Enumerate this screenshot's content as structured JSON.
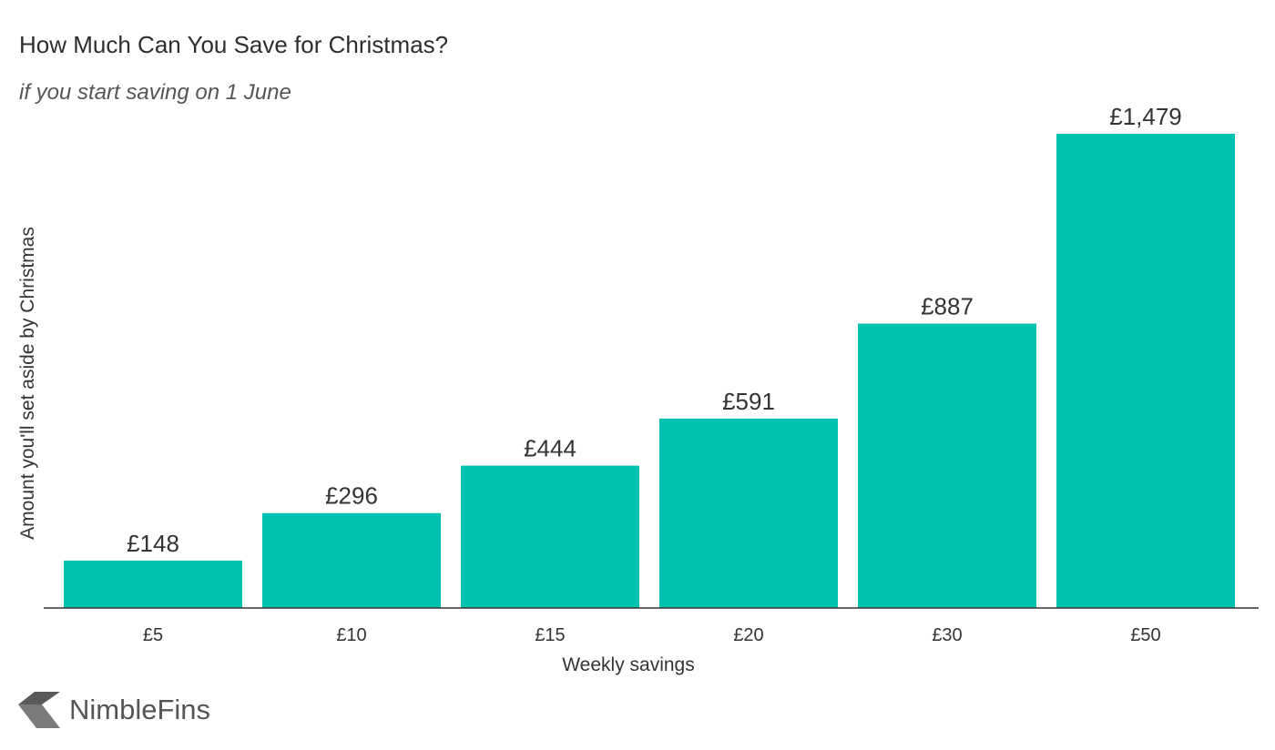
{
  "brand": {
    "name": "NimbleFins",
    "logo_icon": "nimblefins-chevron-icon"
  },
  "colors": {
    "bar": "#00c2ae",
    "text": "#333333",
    "axis": "#333333",
    "logo": "#555555"
  },
  "chart_data": {
    "type": "bar",
    "title": "How Much Can You Save for Christmas?",
    "subtitle": "if you start saving on 1 June",
    "xlabel": "Weekly savings",
    "ylabel": "Amount you'll set aside by Christmas",
    "categories": [
      "£5",
      "£10",
      "£15",
      "£20",
      "£30",
      "£50"
    ],
    "values": [
      148,
      296,
      444,
      591,
      887,
      1479
    ],
    "data_labels": [
      "£148",
      "£296",
      "£444",
      "£591",
      "£887",
      "£1,479"
    ],
    "ylim": [
      0,
      1550
    ],
    "grid": false,
    "legend": "none",
    "y_ticks_shown": false
  }
}
